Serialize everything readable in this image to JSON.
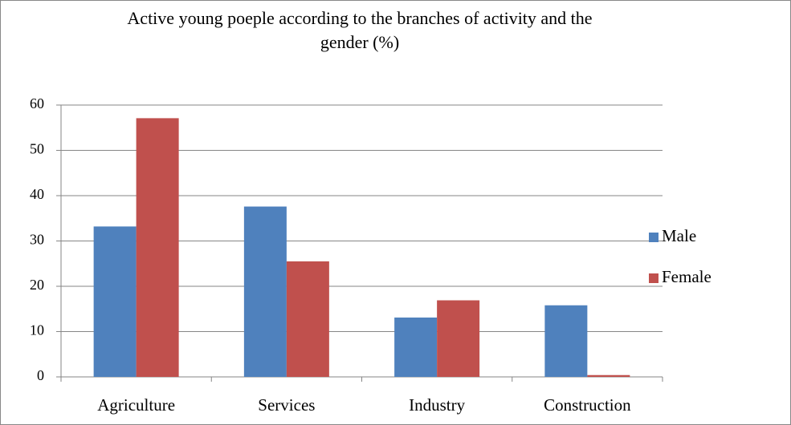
{
  "chart_data": {
    "type": "bar",
    "title": "Active young poeple according to the branches of activity and the gender (%)",
    "categories": [
      "Agriculture",
      "Services",
      "Industry",
      "Construction"
    ],
    "series": [
      {
        "name": "Male",
        "color": "#4f81bd",
        "values": [
          33.2,
          37.6,
          13.1,
          15.8
        ]
      },
      {
        "name": "Female",
        "color": "#c0504d",
        "values": [
          57.1,
          25.5,
          16.9,
          0.4
        ]
      }
    ],
    "ylim": [
      0,
      60
    ],
    "yticks": [
      0,
      10,
      20,
      30,
      40,
      50,
      60
    ],
    "grid": true,
    "legend": "right"
  }
}
